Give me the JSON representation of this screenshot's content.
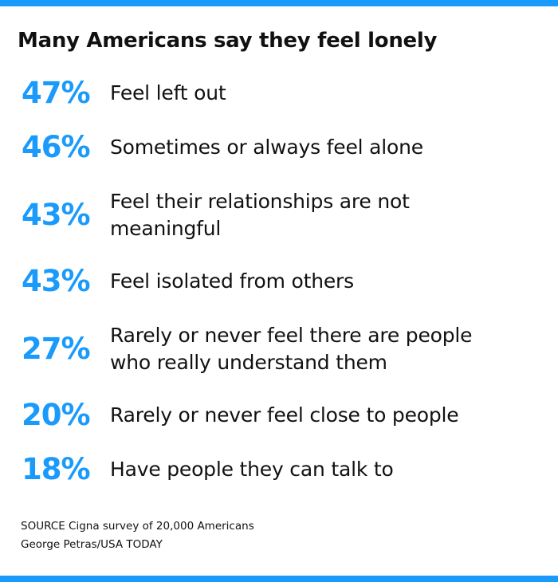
{
  "colors": {
    "accent": "#1a9bfc",
    "bar": "#1a9bfc",
    "text": "#111111"
  },
  "title": "Many Americans say they feel lonely",
  "chart_data": {
    "type": "table",
    "title": "Many Americans say they feel lonely",
    "unit": "%",
    "rows": [
      {
        "value": 47,
        "value_label": "47%",
        "lines": [
          "Feel left out"
        ]
      },
      {
        "value": 46,
        "value_label": "46%",
        "lines": [
          "Sometimes or always feel alone"
        ]
      },
      {
        "value": 43,
        "value_label": "43%",
        "lines": [
          "Feel their relationships are not",
          "meaningful"
        ]
      },
      {
        "value": 43,
        "value_label": "43%",
        "lines": [
          "Feel isolated from others"
        ]
      },
      {
        "value": 27,
        "value_label": "27%",
        "lines": [
          "Rarely or never feel there are people",
          "who really understand them"
        ]
      },
      {
        "value": 20,
        "value_label": "20%",
        "lines": [
          "Rarely or never feel close to people"
        ]
      },
      {
        "value": 18,
        "value_label": "18%",
        "lines": [
          "Have people they can talk to"
        ]
      }
    ]
  },
  "footer": {
    "source": "SOURCE Cigna survey of 20,000 Americans",
    "credit": "George Petras/USA TODAY"
  }
}
